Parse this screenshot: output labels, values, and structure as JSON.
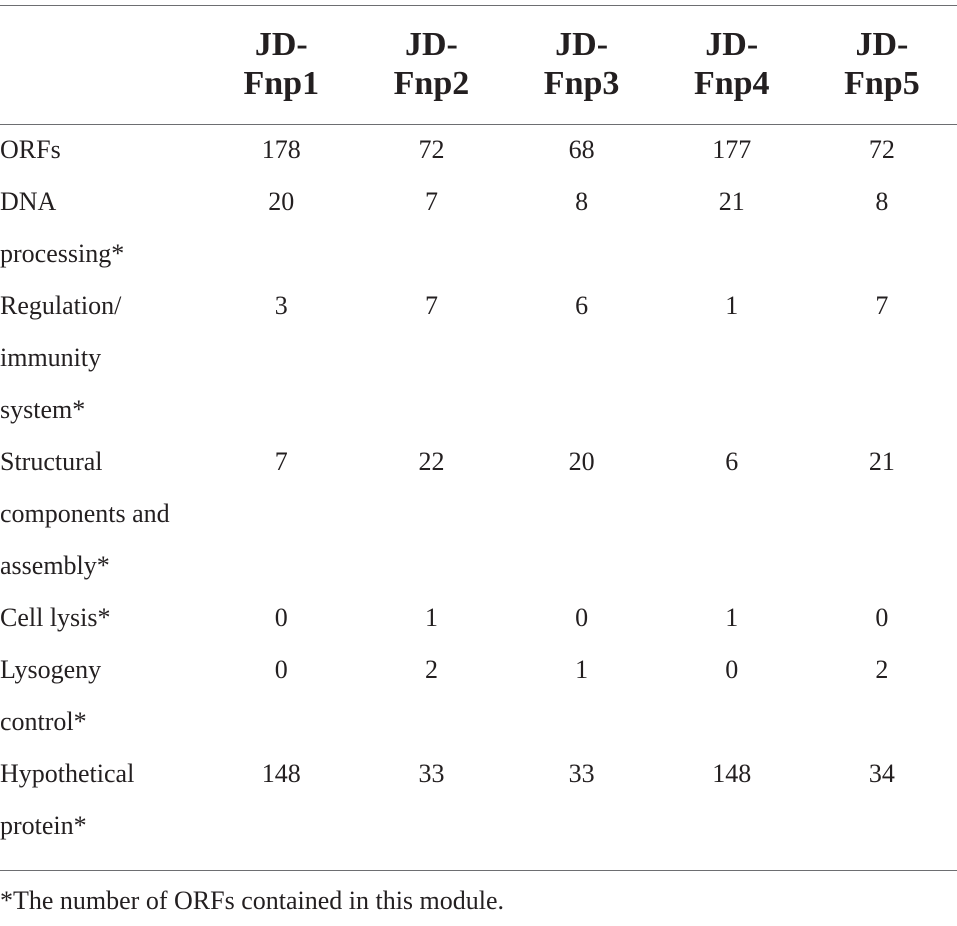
{
  "table": {
    "columns": [
      [
        "JD-",
        "Fnp1"
      ],
      [
        "JD-",
        "Fnp2"
      ],
      [
        "JD-",
        "Fnp3"
      ],
      [
        "JD-",
        "Fnp4"
      ],
      [
        "JD-",
        "Fnp5"
      ]
    ],
    "rows": [
      {
        "label": [
          "ORFs"
        ],
        "values": [
          "178",
          "72",
          "68",
          "177",
          "72"
        ]
      },
      {
        "label": [
          "DNA",
          "processing*"
        ],
        "values": [
          "20",
          "7",
          "8",
          "21",
          "8"
        ]
      },
      {
        "label": [
          "Regulation/",
          "immunity",
          "system*"
        ],
        "values": [
          "3",
          "7",
          "6",
          "1",
          "7"
        ]
      },
      {
        "label": [
          "Structural",
          "components and",
          "assembly*"
        ],
        "values": [
          "7",
          "22",
          "20",
          "6",
          "21"
        ]
      },
      {
        "label": [
          "Cell lysis*"
        ],
        "values": [
          "0",
          "1",
          "0",
          "1",
          "0"
        ]
      },
      {
        "label": [
          "Lysogeny",
          "control*"
        ],
        "values": [
          "0",
          "2",
          "1",
          "0",
          "2"
        ]
      },
      {
        "label": [
          "Hypothetical",
          "protein*"
        ],
        "values": [
          "148",
          "33",
          "33",
          "148",
          "34"
        ]
      }
    ]
  },
  "footnote": "*The number of ORFs contained in this module."
}
